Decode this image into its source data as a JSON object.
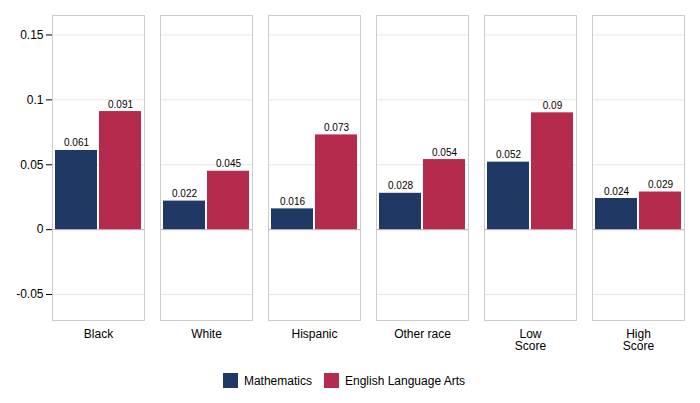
{
  "chart_data": {
    "type": "bar",
    "categories": [
      "Black",
      "White",
      "Hispanic",
      "Other race",
      "Low\nScore",
      "High\nScore"
    ],
    "series": [
      {
        "name": "Mathematics",
        "color": "#1f3864",
        "values": [
          0.061,
          0.022,
          0.016,
          0.028,
          0.052,
          0.024
        ]
      },
      {
        "name": "English Language Arts",
        "color": "#b52b4e",
        "values": [
          0.091,
          0.045,
          0.073,
          0.054,
          0.09,
          0.029
        ]
      }
    ],
    "ylim": [
      -0.07,
      0.165
    ],
    "yticks": [
      -0.05,
      0,
      0.05,
      0.1,
      0.15
    ],
    "grid": true,
    "data_labels": true,
    "legend": "bottom"
  }
}
